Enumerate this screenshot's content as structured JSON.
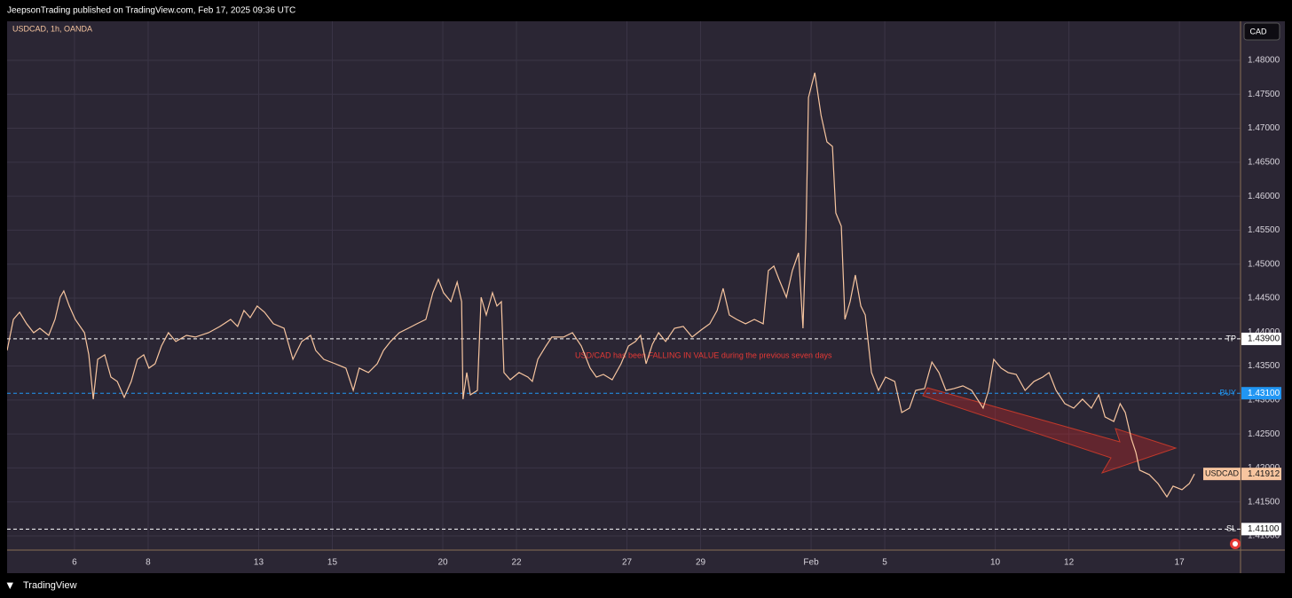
{
  "chart_data": {
    "type": "line",
    "publisher": "JeepsonTrading published on TradingView.com, Feb 17, 2025 09:36 UTC",
    "title": "USDCAD, 1h, OANDA",
    "currency": "CAD",
    "annotation": "USD/CAD has been FALLING IN VALUE during the previous seven days",
    "brand": "TradingView",
    "x": [
      -1.83,
      -1.66,
      -1.49,
      -1.3,
      -1.11,
      -0.94,
      -0.7,
      -0.53,
      -0.39,
      -0.29,
      -0.14,
      0.02,
      0.27,
      0.39,
      0.51,
      0.63,
      0.82,
      0.99,
      1.16,
      1.35,
      1.54,
      1.71,
      1.88,
      2.02,
      2.19,
      2.36,
      2.55,
      2.75,
      3.04,
      3.28,
      3.64,
      3.95,
      4.24,
      4.43,
      4.6,
      4.77,
      4.96,
      5.16,
      5.4,
      5.69,
      5.93,
      6.17,
      6.41,
      6.55,
      6.77,
      7.08,
      7.37,
      7.57,
      7.73,
      7.98,
      8.22,
      8.39,
      8.58,
      8.82,
      9.06,
      9.3,
      9.54,
      9.73,
      9.88,
      10.02,
      10.22,
      10.39,
      10.51,
      10.55,
      10.65,
      10.75,
      10.94,
      11.04,
      11.18,
      11.35,
      11.47,
      11.59,
      11.66,
      11.83,
      12.07,
      12.31,
      12.43,
      12.58,
      12.8,
      12.96,
      13.28,
      13.52,
      13.76,
      14.0,
      14.17,
      14.36,
      14.6,
      14.84,
      15.04,
      15.23,
      15.37,
      15.52,
      15.69,
      15.86,
      16.05,
      16.29,
      16.53,
      16.77,
      17.01,
      17.25,
      17.45,
      17.61,
      17.78,
      17.98,
      18.22,
      18.46,
      18.7,
      18.84,
      18.99,
      19.13,
      19.33,
      19.49,
      19.66,
      19.78,
      19.86,
      19.93,
      20.1,
      20.27,
      20.43,
      20.58,
      20.67,
      20.82,
      20.92,
      21.06,
      21.2,
      21.35,
      21.47,
      21.64,
      21.83,
      22.02,
      22.27,
      22.46,
      22.67,
      22.84,
      23.08,
      23.28,
      23.47,
      23.66,
      23.88,
      24.12,
      24.36,
      24.67,
      24.82,
      24.96,
      25.16,
      25.35,
      25.57,
      25.81,
      26.05,
      26.29,
      26.46,
      26.65,
      26.89,
      27.13,
      27.37,
      27.61,
      27.81,
      27.98,
      28.22,
      28.39,
      28.53,
      28.7,
      28.82,
      28.92,
      29.18,
      29.42,
      29.66,
      29.83,
      30.07,
      30.27,
      30.41
    ],
    "series": [
      {
        "name": "USDCAD",
        "color": "#f7c59f",
        "values": [
          1.4373,
          1.44187,
          1.44292,
          1.44122,
          1.43991,
          1.44056,
          1.43952,
          1.44187,
          1.44513,
          1.44605,
          1.44383,
          1.44187,
          1.43991,
          1.43665,
          1.43012,
          1.43599,
          1.43665,
          1.43338,
          1.43273,
          1.43038,
          1.43273,
          1.43599,
          1.43665,
          1.43469,
          1.43534,
          1.43795,
          1.43991,
          1.43861,
          1.43952,
          1.43926,
          1.43991,
          1.44083,
          1.44187,
          1.44083,
          1.44318,
          1.44213,
          1.44383,
          1.44292,
          1.44122,
          1.44056,
          1.43599,
          1.43861,
          1.43952,
          1.4373,
          1.43599,
          1.43534,
          1.43469,
          1.43142,
          1.43469,
          1.43404,
          1.43534,
          1.4373,
          1.43861,
          1.43991,
          1.44056,
          1.44122,
          1.44187,
          1.44579,
          1.44775,
          1.44579,
          1.44448,
          1.44736,
          1.44448,
          1.43012,
          1.43404,
          1.43077,
          1.43142,
          1.44513,
          1.44252,
          1.44579,
          1.44383,
          1.44448,
          1.43404,
          1.43299,
          1.43404,
          1.43338,
          1.43273,
          1.43599,
          1.43795,
          1.43926,
          1.43926,
          1.43991,
          1.43795,
          1.43469,
          1.43338,
          1.43377,
          1.43299,
          1.43534,
          1.43795,
          1.43861,
          1.43952,
          1.43534,
          1.43821,
          1.43991,
          1.43861,
          1.44056,
          1.44083,
          1.43926,
          1.4403,
          1.44122,
          1.44318,
          1.44644,
          1.44252,
          1.44187,
          1.44122,
          1.44187,
          1.44122,
          1.44905,
          1.44971,
          1.44775,
          1.44513,
          1.44905,
          1.45166,
          1.44056,
          1.45388,
          1.47452,
          1.47817,
          1.4719,
          1.46799,
          1.46733,
          1.45754,
          1.45558,
          1.44187,
          1.44448,
          1.4484,
          1.44383,
          1.44252,
          1.43404,
          1.43142,
          1.43338,
          1.43273,
          1.42816,
          1.42881,
          1.43142,
          1.43169,
          1.4356,
          1.43404,
          1.43142,
          1.43169,
          1.43208,
          1.43142,
          1.42881,
          1.43142,
          1.43599,
          1.43469,
          1.43404,
          1.43377,
          1.43142,
          1.43273,
          1.43338,
          1.43404,
          1.43142,
          1.42947,
          1.42881,
          1.43012,
          1.42881,
          1.43077,
          1.42751,
          1.42685,
          1.42947,
          1.42816,
          1.42424,
          1.42228,
          1.41967,
          1.41902,
          1.41771,
          1.41575,
          1.41732,
          1.4168,
          1.41771,
          1.41912
        ]
      }
    ],
    "xlim": [
      -1.83,
      31.66
    ],
    "ylim": [
      1.40791,
      1.48496
    ],
    "xticks": [
      {
        "value": 0,
        "label": "6"
      },
      {
        "value": 2,
        "label": "8"
      },
      {
        "value": 5,
        "label": "13"
      },
      {
        "value": 7,
        "label": "15"
      },
      {
        "value": 10,
        "label": "20"
      },
      {
        "value": 12,
        "label": "22"
      },
      {
        "value": 15,
        "label": "27"
      },
      {
        "value": 17,
        "label": "29"
      },
      {
        "value": 20,
        "label": "Feb"
      },
      {
        "value": 22,
        "label": "5"
      },
      {
        "value": 25,
        "label": "10"
      },
      {
        "value": 27,
        "label": "12"
      },
      {
        "value": 30,
        "label": "17"
      }
    ],
    "yticks": [
      {
        "value": 1.41,
        "label": "1.41000"
      },
      {
        "value": 1.415,
        "label": "1.41500"
      },
      {
        "value": 1.42,
        "label": "1.42000"
      },
      {
        "value": 1.425,
        "label": "1.42500"
      },
      {
        "value": 1.43,
        "label": "1.43000"
      },
      {
        "value": 1.435,
        "label": "1.43500"
      },
      {
        "value": 1.44,
        "label": "1.44000"
      },
      {
        "value": 1.445,
        "label": "1.44500"
      },
      {
        "value": 1.45,
        "label": "1.45000"
      },
      {
        "value": 1.455,
        "label": "1.45500"
      },
      {
        "value": 1.46,
        "label": "1.46000"
      },
      {
        "value": 1.465,
        "label": "1.46500"
      },
      {
        "value": 1.47,
        "label": "1.47000"
      },
      {
        "value": 1.475,
        "label": "1.47500"
      },
      {
        "value": 1.48,
        "label": "1.48000"
      }
    ],
    "grid": true,
    "levels": [
      {
        "name": "TP",
        "value": 1.439,
        "label": "1.43900",
        "color": "#ffffff"
      },
      {
        "name": "BUY",
        "value": 1.431,
        "label": "1.43100",
        "color": "#2196f3"
      },
      {
        "name": "SL",
        "value": 1.411,
        "label": "1.41100",
        "color": "#ffffff"
      }
    ]
  }
}
